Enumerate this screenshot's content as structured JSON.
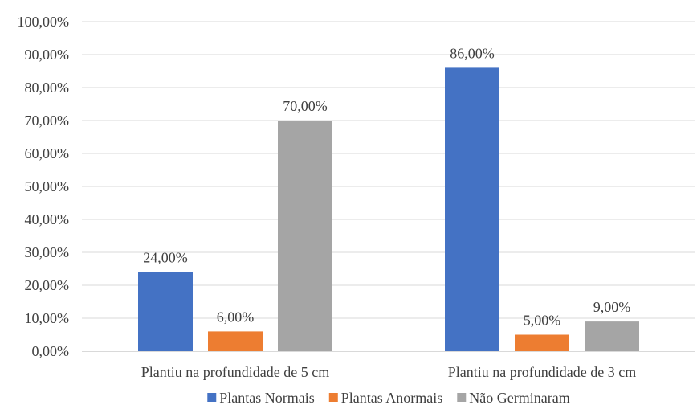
{
  "chart_data": {
    "type": "bar",
    "title": "",
    "xlabel": "",
    "ylabel": "",
    "categories": [
      "Plantiu na profundidade de 5 cm",
      "Plantiu na profundidade de 3 cm"
    ],
    "series": [
      {
        "name": "Plantas Normais",
        "color": "#4472c4",
        "values": [
          24,
          86
        ],
        "labels": [
          "24,00%",
          "86,00%"
        ]
      },
      {
        "name": "Plantas Anormais",
        "color": "#ed7d31",
        "values": [
          6,
          5
        ],
        "labels": [
          "6,00%",
          "5,00%"
        ]
      },
      {
        "name": "Não Germinaram",
        "color": "#a5a5a5",
        "values": [
          70,
          9
        ],
        "labels": [
          "70,00%",
          "9,00%"
        ]
      }
    ],
    "ylim": [
      0,
      100
    ],
    "yticks": [
      "0,00%",
      "10,00%",
      "20,00%",
      "30,00%",
      "40,00%",
      "50,00%",
      "60,00%",
      "70,00%",
      "80,00%",
      "90,00%",
      "100,00%"
    ],
    "grid": true,
    "legend_position": "bottom"
  }
}
